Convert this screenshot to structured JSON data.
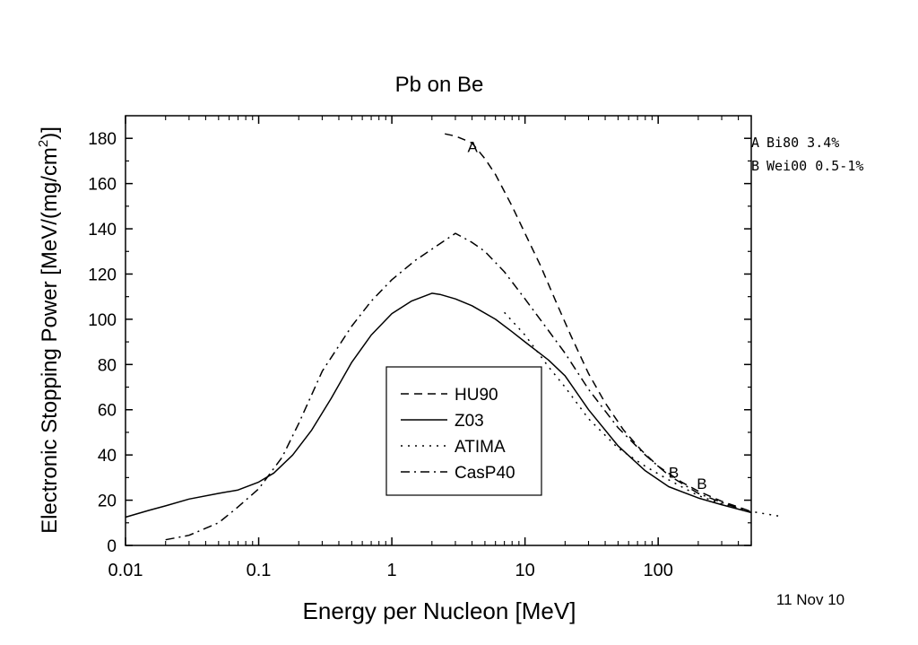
{
  "chart_data": {
    "type": "line",
    "title": "Pb on Be",
    "xlabel": "Energy per Nucleon [MeV]",
    "ylabel_main": "Electronic Stopping Power [MeV/(mg/cm",
    "ylabel_sup": "2",
    "ylabel_tail": ")]",
    "x_scale": "log",
    "xlim": [
      0.01,
      500
    ],
    "ylim": [
      0,
      190
    ],
    "x_ticks": [
      0.01,
      0.1,
      1,
      10,
      100
    ],
    "x_tick_labels": [
      "0.01",
      "0.1",
      "1",
      "10",
      "100"
    ],
    "y_ticks": [
      0,
      20,
      40,
      60,
      80,
      100,
      120,
      140,
      160,
      180
    ],
    "y_tick_labels": [
      "0",
      "20",
      "40",
      "60",
      "80",
      "100",
      "120",
      "140",
      "160",
      "180"
    ],
    "legend_placement": "bottom-center",
    "series": [
      {
        "name": "HU90",
        "dash": "dashed",
        "x": [
          2.5,
          3.0,
          4.0,
          5.0,
          6.0,
          8.0,
          10.0,
          13.0,
          17.0,
          22.0,
          30.0,
          40.0,
          55.0,
          75.0,
          100.0,
          150.0,
          200.0,
          300.0,
          500.0
        ],
        "y": [
          182,
          181,
          178,
          171,
          164,
          150,
          138,
          124,
          108,
          93,
          76,
          63,
          51,
          42,
          35,
          28,
          24,
          19.5,
          15
        ]
      },
      {
        "name": "Z03",
        "dash": "solid",
        "x": [
          0.01,
          0.015,
          0.02,
          0.03,
          0.05,
          0.07,
          0.1,
          0.13,
          0.18,
          0.25,
          0.35,
          0.5,
          0.7,
          1.0,
          1.4,
          2.0,
          2.3,
          3.0,
          4.0,
          6.0,
          8.0,
          10.0,
          15.0,
          20.0,
          30.0,
          50.0,
          80.0,
          120.0,
          200.0,
          300.0,
          500.0
        ],
        "y": [
          12.5,
          15.5,
          17.5,
          20.5,
          23,
          24.5,
          28,
          32,
          40,
          51,
          65,
          81,
          93,
          102.5,
          108,
          111.5,
          111,
          109,
          106,
          100,
          94.5,
          90,
          82,
          75,
          60,
          44,
          33,
          26,
          21,
          18,
          14.5
        ]
      },
      {
        "name": "ATIMA",
        "dash": "dotted",
        "x": [
          7.0,
          10.0,
          15.0,
          20.0,
          30.0,
          50.0,
          80.0,
          120.0,
          200.0,
          300.0,
          500.0,
          800.0
        ],
        "y": [
          103,
          93,
          79,
          70,
          56,
          43,
          35,
          29,
          22,
          18.5,
          15,
          13
        ]
      },
      {
        "name": "CasP40",
        "dash": "dashdot",
        "x": [
          0.02,
          0.03,
          0.05,
          0.07,
          0.1,
          0.15,
          0.2,
          0.3,
          0.5,
          0.7,
          1.0,
          1.5,
          2.0,
          3.0,
          4.0,
          5.0,
          7.0,
          10.0,
          15.0,
          20.0,
          30.0,
          50.0,
          80.0,
          120.0,
          200.0,
          300.0,
          500.0
        ],
        "y": [
          2.5,
          4.5,
          10,
          17,
          25,
          39,
          54,
          77,
          97,
          108,
          117.5,
          126,
          131,
          138,
          134,
          130,
          121,
          109,
          95,
          85,
          69,
          52,
          40,
          31,
          23,
          19,
          14.5
        ]
      }
    ],
    "point_labels": [
      {
        "text": "A",
        "x": 3.7,
        "y": 174
      },
      {
        "text": "B",
        "x": 120,
        "y": 30
      },
      {
        "text": "B",
        "x": 195,
        "y": 25
      }
    ],
    "side_notes": [
      {
        "marker": "A",
        "text": "Bi80  3.4%"
      },
      {
        "marker": "B",
        "text": "Wei00 0.5-1%"
      }
    ],
    "date_stamp": "11 Nov 10"
  }
}
